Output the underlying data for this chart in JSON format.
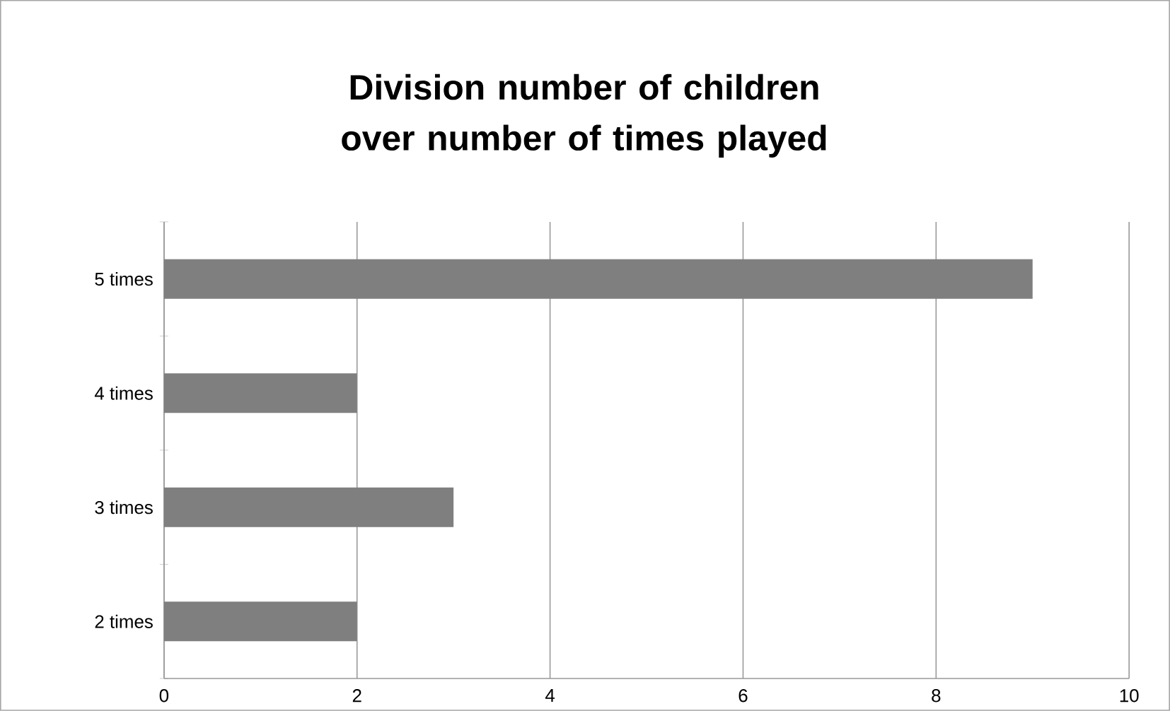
{
  "chart_data": {
    "type": "bar",
    "orientation": "horizontal",
    "title": "Division number of children over number of times played",
    "categories": [
      "5 times",
      "4 times",
      "3 times",
      "2 times"
    ],
    "values": [
      9,
      2,
      3,
      2
    ],
    "color": "#7f7f7f",
    "xlim": [
      0,
      10
    ],
    "xticks": [
      0,
      2,
      4,
      6,
      8,
      10
    ],
    "grid": "x"
  }
}
